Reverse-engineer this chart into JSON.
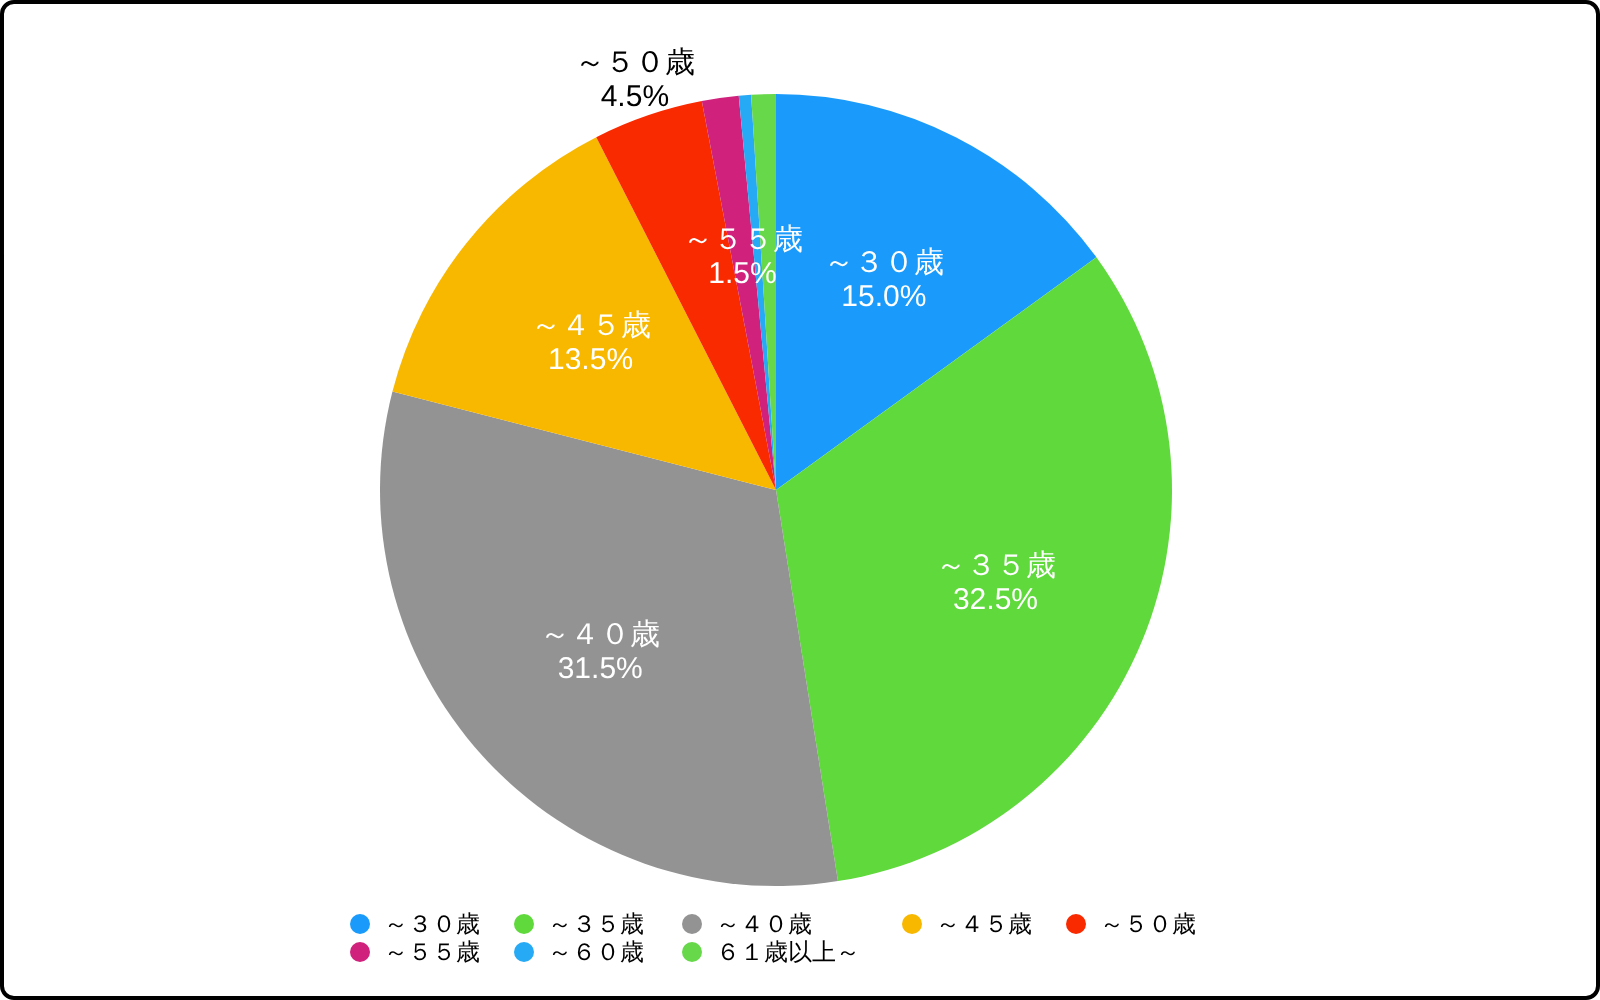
{
  "chart_data": {
    "type": "pie",
    "categories": [
      "～３０歳",
      "～３５歳",
      "～４０歳",
      "～４５歳",
      "～５０歳",
      "～５５歳",
      "～６０歳",
      "６１歳以上～"
    ],
    "values": [
      15.0,
      32.5,
      31.5,
      13.5,
      4.5,
      1.5,
      0.5,
      1.0
    ],
    "colors": [
      "#1a9bfc",
      "#5fd93b",
      "#939393",
      "#f8b800",
      "#fa2a00",
      "#d0217c",
      "#27aaf5",
      "#66d84a"
    ],
    "value_labels": [
      "15.0%",
      "32.5%",
      "31.5%",
      "13.5%",
      "4.5%",
      "1.5%",
      null,
      null
    ],
    "legend": "bottom"
  }
}
